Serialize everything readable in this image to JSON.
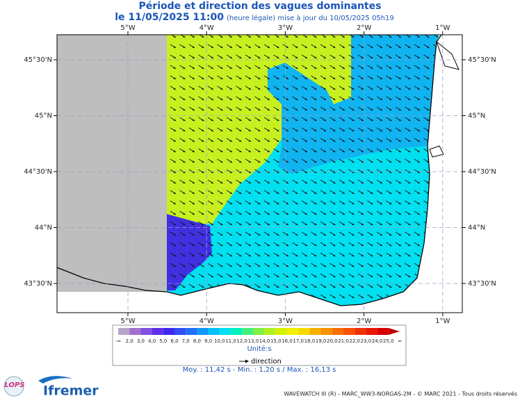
{
  "header": {
    "title": "Période et direction des vagues dominantes",
    "date": "le 11/05/2025 11:00",
    "update": "(heure légale) mise à jour du 10/05/2025 05h19"
  },
  "map": {
    "longitudes": [
      "5°W",
      "4°W",
      "3°W",
      "2°W",
      "1°W"
    ],
    "latitudes": [
      "45°30'N",
      "45°N",
      "44°30'N",
      "44°N",
      "43°30'N"
    ]
  },
  "legend": {
    "labels": [
      "-∞",
      "2,0",
      "3,0",
      "4,0",
      "5,0",
      "6,0",
      "7,0",
      "8,0",
      "9,0",
      "10,0",
      "11,0",
      "12,0",
      "13,0",
      "14,0",
      "15,0",
      "16,0",
      "17,0",
      "18,0",
      "19,0",
      "20,0",
      "21,0",
      "22,0",
      "23,0",
      "24,0",
      "25,0",
      "∞"
    ],
    "colors": [
      "#b8a4c8",
      "#a070d0",
      "#8050e0",
      "#6030e8",
      "#4028f0",
      "#3050f8",
      "#2070f8",
      "#1098f8",
      "#00c0f8",
      "#00e0f0",
      "#00f0c0",
      "#40f080",
      "#80f040",
      "#b0f020",
      "#d8f000",
      "#f0f000",
      "#f8d800",
      "#f8b000",
      "#f89000",
      "#f87000",
      "#f85000",
      "#f03000",
      "#e81800",
      "#d80000",
      "#c00000"
    ],
    "unit": "Unité:s",
    "direction": "direction"
  },
  "stats": "Moy. : 11,42 s   -   Min. : 1,20 s / Max. : 16,13 s",
  "logos": {
    "lops": "LOPS",
    "ifremer": "Ifremer"
  },
  "footer": "WAVEWATCH III (R) - MARC_WW3-NORGAS-2M - © MARC 2021 - Tous droits réservés"
}
